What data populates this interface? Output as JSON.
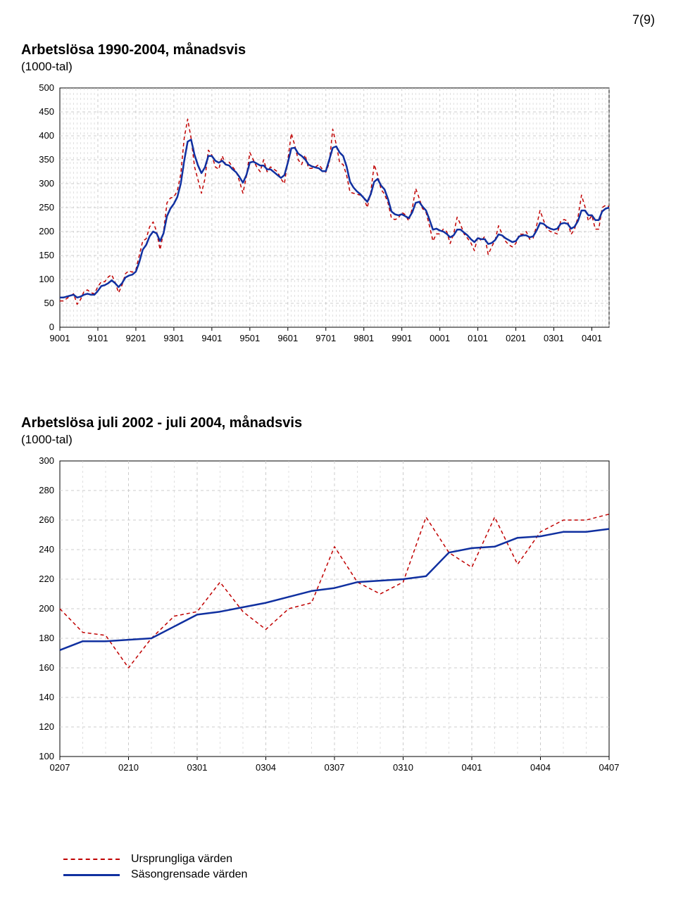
{
  "page_number": "7(9)",
  "chart1": {
    "type": "line",
    "title": "Arbetslösa 1990-2004, månadsvis",
    "subtitle": "(1000-tal)",
    "title_fontsize": 20,
    "subtitle_fontsize": 17,
    "background_color": "#ffffff",
    "grid_color": "#cccccc",
    "axis_color": "#000000",
    "ylim": [
      0,
      500
    ],
    "ytick_step": 50,
    "yticks": [
      "0",
      "50",
      "100",
      "150",
      "200",
      "250",
      "300",
      "350",
      "400",
      "450",
      "500"
    ],
    "xticks": [
      "9001",
      "9101",
      "9201",
      "9301",
      "9401",
      "9501",
      "9601",
      "9701",
      "9801",
      "9901",
      "0001",
      "0101",
      "0201",
      "0301",
      "0401"
    ],
    "tick_fontsize": 13,
    "series": [
      {
        "name": "Ursprungliga värden",
        "color": "#c00000",
        "line_width": 1.5,
        "dash": "5,4",
        "y": [
          55,
          55,
          60,
          65,
          70,
          48,
          58,
          75,
          78,
          72,
          70,
          85,
          95,
          95,
          105,
          110,
          94,
          72,
          88,
          112,
          118,
          115,
          120,
          150,
          180,
          185,
          210,
          220,
          200,
          162,
          198,
          260,
          270,
          272,
          285,
          320,
          395,
          435,
          395,
          335,
          308,
          280,
          310,
          370,
          360,
          335,
          330,
          358,
          340,
          345,
          335,
          326,
          305,
          280,
          315,
          365,
          350,
          335,
          325,
          350,
          325,
          335,
          330,
          325,
          310,
          300,
          350,
          405,
          380,
          350,
          340,
          360,
          332,
          332,
          335,
          340,
          330,
          324,
          343,
          414,
          382,
          344,
          340,
          318,
          282,
          280,
          278,
          276,
          270,
          250,
          282,
          340,
          318,
          288,
          278,
          260,
          228,
          225,
          228,
          240,
          235,
          222,
          248,
          290,
          270,
          248,
          240,
          212,
          180,
          195,
          195,
          205,
          200,
          175,
          195,
          230,
          215,
          195,
          186,
          176,
          160,
          190,
          180,
          190,
          152,
          168,
          182,
          212,
          195,
          180,
          172,
          168,
          175,
          195,
          194,
          200,
          184,
          186,
          212,
          244,
          224,
          205,
          200,
          198,
          195,
          222,
          225,
          222,
          194,
          205,
          230,
          276,
          252,
          222,
          234,
          205,
          205,
          250,
          255,
          252
        ]
      },
      {
        "name": "Säsongrensade värden",
        "color": "#1030a0",
        "line_width": 2.5,
        "dash": "none",
        "y": [
          62,
          62,
          64,
          66,
          68,
          62,
          64,
          68,
          70,
          68,
          68,
          76,
          86,
          88,
          92,
          98,
          92,
          84,
          92,
          104,
          108,
          110,
          116,
          136,
          162,
          172,
          190,
          200,
          196,
          180,
          196,
          232,
          248,
          258,
          272,
          300,
          348,
          388,
          392,
          360,
          338,
          322,
          334,
          358,
          358,
          348,
          344,
          348,
          340,
          338,
          330,
          324,
          314,
          302,
          318,
          344,
          346,
          342,
          338,
          338,
          330,
          330,
          324,
          318,
          312,
          318,
          344,
          374,
          375,
          363,
          358,
          351,
          340,
          336,
          334,
          332,
          326,
          326,
          350,
          375,
          378,
          365,
          358,
          336,
          304,
          292,
          284,
          278,
          270,
          262,
          278,
          304,
          310,
          296,
          288,
          268,
          242,
          236,
          234,
          236,
          232,
          228,
          240,
          260,
          262,
          252,
          244,
          225,
          204,
          206,
          202,
          200,
          195,
          188,
          192,
          204,
          204,
          198,
          192,
          184,
          178,
          186,
          184,
          184,
          174,
          176,
          182,
          194,
          192,
          186,
          182,
          178,
          180,
          190,
          192,
          192,
          188,
          190,
          202,
          218,
          216,
          210,
          206,
          204,
          206,
          216,
          218,
          216,
          206,
          210,
          222,
          244,
          244,
          234,
          234,
          224,
          224,
          242,
          248,
          250
        ]
      }
    ]
  },
  "chart2": {
    "type": "line",
    "title": "Arbetslösa juli 2002 - juli 2004, månadsvis",
    "subtitle": "(1000-tal)",
    "title_fontsize": 20,
    "subtitle_fontsize": 17,
    "background_color": "#ffffff",
    "grid_color": "#cccccc",
    "axis_color": "#000000",
    "ylim": [
      100,
      300
    ],
    "ytick_step": 20,
    "yticks": [
      "100",
      "120",
      "140",
      "160",
      "180",
      "200",
      "220",
      "240",
      "260",
      "280",
      "300"
    ],
    "xticks": [
      "0207",
      "0210",
      "0301",
      "0304",
      "0307",
      "0310",
      "0401",
      "0404",
      "0407"
    ],
    "tick_fontsize": 13,
    "series": [
      {
        "name": "Ursprungliga värden",
        "color": "#c00000",
        "line_width": 1.5,
        "dash": "5,4",
        "y": [
          200,
          184,
          182,
          160,
          180,
          195,
          198,
          218,
          198,
          186,
          200,
          204,
          242,
          218,
          210,
          218,
          262,
          238,
          228,
          262,
          230,
          252,
          260,
          260,
          264
        ]
      },
      {
        "name": "Säsongrensade värden",
        "color": "#1030a0",
        "line_width": 2.5,
        "dash": "none",
        "y": [
          172,
          178,
          178,
          179,
          180,
          188,
          196,
          198,
          201,
          204,
          208,
          212,
          214,
          218,
          219,
          220,
          222,
          238,
          241,
          242,
          248,
          249,
          252,
          252,
          254
        ]
      }
    ]
  },
  "legend": {
    "items": [
      {
        "label": "Ursprungliga värden",
        "color": "#c00000",
        "dash": true
      },
      {
        "label": "Säsongrensade värden",
        "color": "#1030a0",
        "dash": false
      }
    ]
  }
}
